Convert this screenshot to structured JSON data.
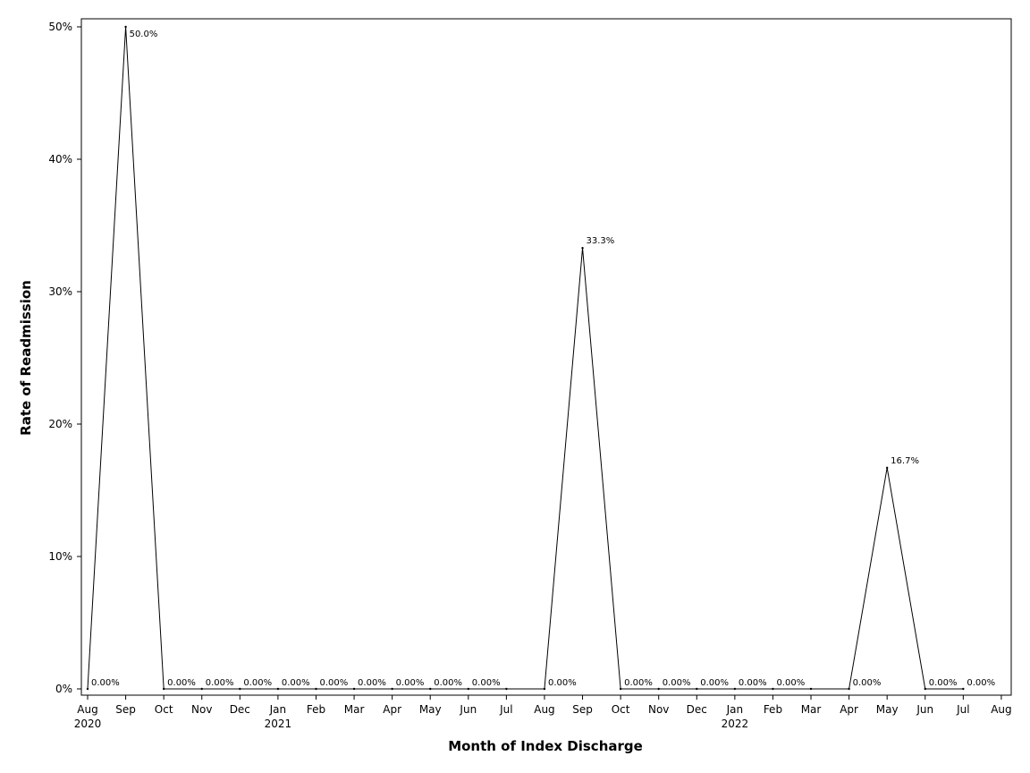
{
  "chart_data": {
    "type": "line",
    "xlabel": "Month of Index Discharge",
    "ylabel": "Rate of Readmission",
    "ylim": [
      0,
      50
    ],
    "y_ticks": [
      "0%",
      "10%",
      "20%",
      "30%",
      "40%",
      "50%"
    ],
    "y_tick_values": [
      0,
      10,
      20,
      30,
      40,
      50
    ],
    "x_ticks": [
      {
        "label": "Aug",
        "year": "2020"
      },
      {
        "label": "Sep",
        "year": ""
      },
      {
        "label": "Oct",
        "year": ""
      },
      {
        "label": "Nov",
        "year": ""
      },
      {
        "label": "Dec",
        "year": ""
      },
      {
        "label": "Jan",
        "year": "2021"
      },
      {
        "label": "Feb",
        "year": ""
      },
      {
        "label": "Mar",
        "year": ""
      },
      {
        "label": "Apr",
        "year": ""
      },
      {
        "label": "May",
        "year": ""
      },
      {
        "label": "Jun",
        "year": ""
      },
      {
        "label": "Jul",
        "year": ""
      },
      {
        "label": "Aug",
        "year": ""
      },
      {
        "label": "Sep",
        "year": ""
      },
      {
        "label": "Oct",
        "year": ""
      },
      {
        "label": "Nov",
        "year": ""
      },
      {
        "label": "Dec",
        "year": ""
      },
      {
        "label": "Jan",
        "year": "2022"
      },
      {
        "label": "Feb",
        "year": ""
      },
      {
        "label": "Mar",
        "year": ""
      },
      {
        "label": "Apr",
        "year": ""
      },
      {
        "label": "May",
        "year": ""
      },
      {
        "label": "Jun",
        "year": ""
      },
      {
        "label": "Jul",
        "year": ""
      },
      {
        "label": "Aug",
        "year": ""
      }
    ],
    "series": [
      {
        "x": [
          "2020-08",
          "2020-09",
          "2020-10",
          "2020-11",
          "2020-12",
          "2021-01",
          "2021-02",
          "2021-03",
          "2021-04",
          "2021-05",
          "2021-06",
          "2021-07",
          "2021-08",
          "2021-09",
          "2021-10",
          "2021-11",
          "2021-12",
          "2022-01",
          "2022-02",
          "2022-03",
          "2022-04",
          "2022-05",
          "2022-06",
          "2022-07"
        ],
        "values": [
          0,
          50.0,
          0,
          0,
          0,
          0,
          0,
          0,
          0,
          0,
          0,
          0,
          0,
          33.3,
          0,
          0,
          0,
          0,
          0,
          0,
          0,
          16.7,
          0,
          0
        ],
        "labels": [
          "0.00%",
          "50.0%",
          "0.00%",
          "0.00%",
          "0.00%",
          "0.00%",
          "0.00%",
          "0.00%",
          "0.00%",
          "0.00%",
          "0.00%",
          "",
          "0.00%",
          "33.3%",
          "0.00%",
          "0.00%",
          "0.00%",
          "0.00%",
          "0.00%",
          "",
          "0.00%",
          "16.7%",
          "0.00%",
          "0.00%"
        ]
      }
    ],
    "line_color": "#000000",
    "grid": false
  }
}
